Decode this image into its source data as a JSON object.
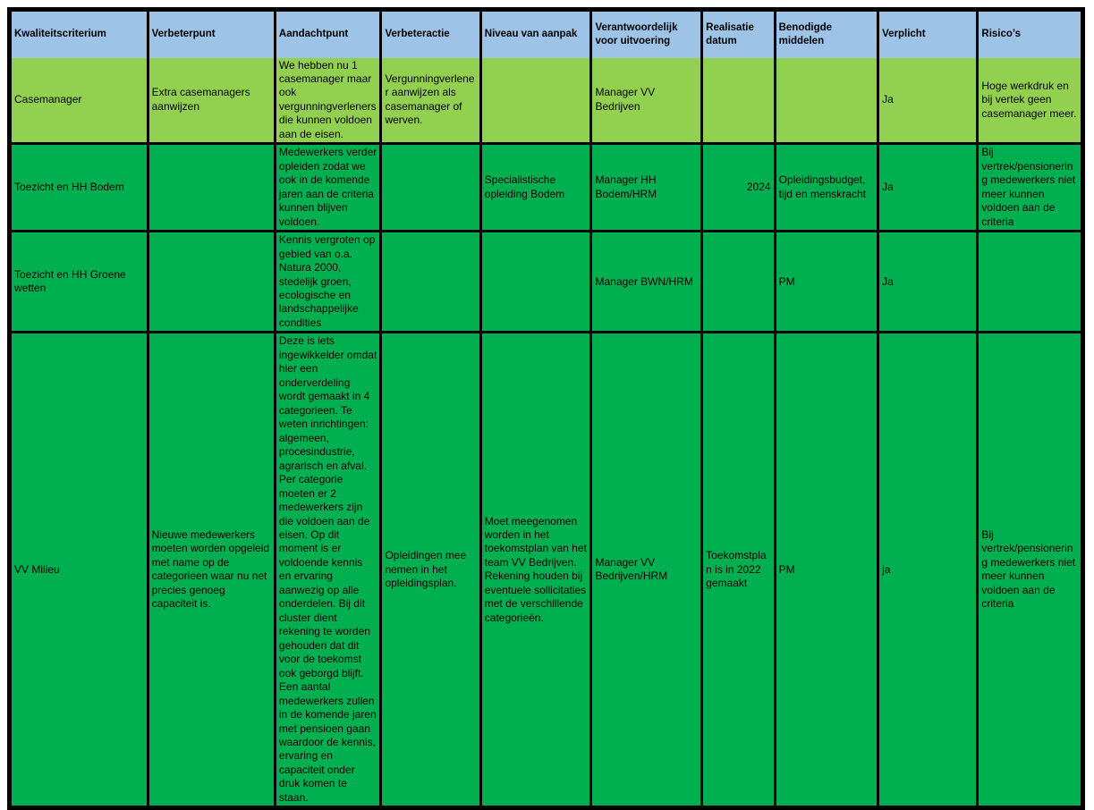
{
  "colors": {
    "page_bg": "#FFFFFF",
    "header_bg": "#9DC3E6",
    "row_light_green": "#92D050",
    "row_green": "#00B050",
    "border": "#000000",
    "text": "#000000"
  },
  "table": {
    "headers": [
      "Kwaliteitscriterium",
      "Verbeterpunt",
      "Aandachtpunt",
      "Verbeteractie",
      "Niveau van aanpak",
      "Verantwoordelijk voor uitvoering",
      "Realisatie datum",
      "Benodigde middelen",
      "Verplicht",
      "Risico’s"
    ],
    "rows": [
      {
        "tone": "light",
        "cells": [
          "Casemanager",
          "Extra casemanagers aanwijzen",
          "We hebben nu 1 casemanager maar ook vergunningverleners die kunnen voldoen aan de eisen.",
          "Vergunningverlener aanwijzen als casemanager of werven.",
          "",
          "Manager VV Bedrijven",
          "",
          "",
          "Ja",
          "Hoge werkdruk en bij vertek geen casemanager meer."
        ]
      },
      {
        "tone": "green",
        "cells": [
          "Toezicht en HH Bodem",
          "",
          "Medewerkers verder opleiden zodat we ook in de komende jaren aan de criteria kunnen blijven voldoen.",
          "",
          "Specialistische opleiding Bodem",
          "Manager HH Bodem/HRM",
          "2024",
          "Opleidingsbudget, tijd en menskracht",
          "Ja",
          "Bij vertrek/pensionering medewerkers niet meer kunnen voldoen aan de criteria"
        ]
      },
      {
        "tone": "green",
        "cells": [
          "Toezicht en HH Groene wetten",
          "",
          "Kennis vergroten op gebied van o.a. Natura 2000, stedelijk groen, ecologische en landschappelijke condities",
          "",
          "",
          "Manager BWN/HRM",
          "",
          "PM",
          "Ja",
          ""
        ]
      },
      {
        "tone": "green",
        "cells": [
          "VV Milieu",
          "Nieuwe medewerkers moeten worden opgeleid met name op de categorieen waar nu net precies genoeg capaciteit is.",
          "Deze is iets ingewikkelder omdat hier een onderverdeling wordt gemaakt in 4 categorieen. Te weten inrichtingen: algemeen, procesindustrie, agrarisch en afval. Per categorie moeten er 2 medewerkers zijn die voldoen aan de eisen. Op dit moment is er voldoende kennis en ervaring aanwezig op alle onderdelen. Bij dit cluster dient rekening te worden gehouden dat dit voor de toekomst ook geborgd blijft. Een aantal medewerkers zullen in de komende jaren met pensioen gaan waardoor de kennis, ervaring en capaciteit onder druk komen te staan.",
          "Opleidingen mee nemen in het opleidingsplan.",
          "Moet meegenomen worden in het toekomstplan van het team VV Bedrijven. Rekening houden bij eventuele sollicitaties met de verschillende categorieën.",
          "Manager VV Bedrijven/HRM",
          "Toekomstplan is in 2022 gemaakt",
          "PM",
          "ja",
          "Bij vertrek/pensionering medewerkers niet meer kunnen voldoen aan de criteria"
        ]
      }
    ]
  }
}
